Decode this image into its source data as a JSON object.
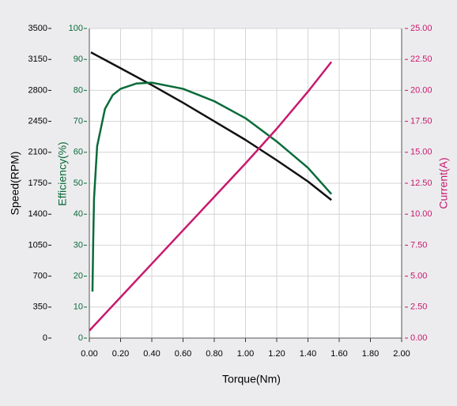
{
  "chart_data": {
    "type": "line",
    "xlabel": "Torque(Nm)",
    "ylabel": "Speed(RPM)",
    "y2label": "Efficiency(%)",
    "y3label": "Current(A)",
    "xlim": [
      0,
      2
    ],
    "xticks": [
      {
        "value": 0,
        "label": "0.00"
      },
      {
        "value": 0.2,
        "label": "0.20"
      },
      {
        "value": 0.4,
        "label": "0.40"
      },
      {
        "value": 0.6,
        "label": "0.60"
      },
      {
        "value": 0.8,
        "label": "0.80"
      },
      {
        "value": 1,
        "label": "1.00"
      },
      {
        "value": 1.2,
        "label": "1.20"
      },
      {
        "value": 1.4,
        "label": "1.40"
      },
      {
        "value": 1.6,
        "label": "1.60"
      },
      {
        "value": 1.8,
        "label": "1.80"
      },
      {
        "value": 2,
        "label": "2.00"
      }
    ],
    "ylim": [
      0,
      3500
    ],
    "yticks": [
      0,
      350,
      700,
      1050,
      1400,
      1750,
      2100,
      2450,
      2800,
      3150,
      3500
    ],
    "y2lim": [
      0,
      100
    ],
    "y2ticks": [
      0,
      10,
      20,
      30,
      40,
      50,
      60,
      70,
      80,
      90,
      100
    ],
    "y3lim": [
      0,
      25
    ],
    "y3ticks": [
      {
        "value": 0,
        "label": "0.00"
      },
      {
        "value": 2.5,
        "label": "2.50"
      },
      {
        "value": 5,
        "label": "5.00"
      },
      {
        "value": 7.5,
        "label": "7.50"
      },
      {
        "value": 10,
        "label": "10.00"
      },
      {
        "value": 12.5,
        "label": "12.50"
      },
      {
        "value": 15,
        "label": "15.00"
      },
      {
        "value": 17.5,
        "label": "17.50"
      },
      {
        "value": 20,
        "label": "20.00"
      },
      {
        "value": 22.5,
        "label": "22.50"
      },
      {
        "value": 25,
        "label": "25.00"
      }
    ],
    "grid": true,
    "series": [
      {
        "axis": "y",
        "color": "#111111",
        "x": [
          0.01,
          0.2,
          0.4,
          0.6,
          0.8,
          1.0,
          1.2,
          1.4,
          1.55
        ],
        "values": [
          3230,
          3050,
          2860,
          2660,
          2450,
          2240,
          2010,
          1770,
          1560
        ]
      },
      {
        "axis": "y2",
        "color": "#0a6b3a",
        "x": [
          0.02,
          0.025,
          0.03,
          0.05,
          0.1,
          0.15,
          0.2,
          0.3,
          0.4,
          0.6,
          0.8,
          1.0,
          1.2,
          1.4,
          1.55
        ],
        "values": [
          15,
          32,
          45,
          62,
          74,
          78.5,
          80.5,
          82.2,
          82.5,
          80.5,
          76.5,
          71,
          63.5,
          55,
          46.5
        ]
      },
      {
        "axis": "y3",
        "color": "#c8196e",
        "x": [
          0,
          0.2,
          0.4,
          0.6,
          0.8,
          1.0,
          1.2,
          1.4,
          1.55
        ],
        "values": [
          0.6,
          3.3,
          6.0,
          8.7,
          11.4,
          14.1,
          16.9,
          19.9,
          22.3
        ]
      }
    ]
  }
}
